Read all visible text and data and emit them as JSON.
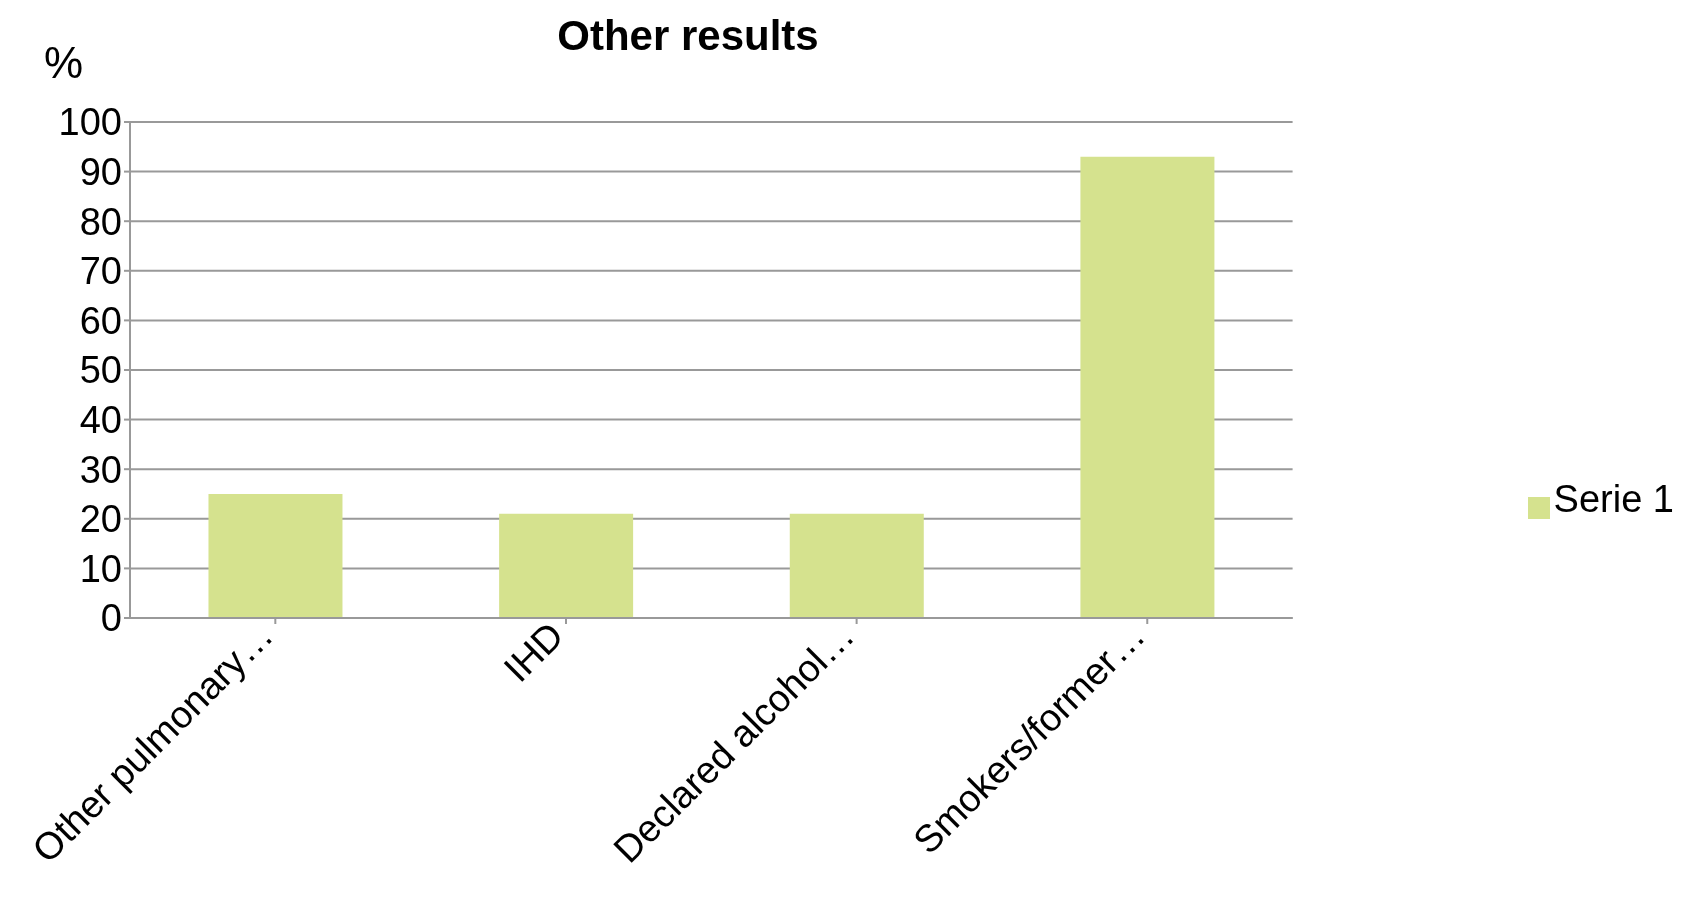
{
  "chart_data": {
    "type": "bar",
    "title": "Other results",
    "ylabel": "%",
    "categories": [
      "Other pulmonary…",
      "IHD",
      "Declared alcohol…",
      "Smokers/former…"
    ],
    "series": [
      {
        "name": "Serie 1",
        "color": "#d5e28e",
        "values": [
          25,
          21,
          21,
          93
        ]
      }
    ],
    "ylim": [
      0,
      100
    ],
    "yticks": [
      0,
      10,
      20,
      30,
      40,
      50,
      60,
      70,
      80,
      90,
      100
    ],
    "grid": "y",
    "legend": "right"
  }
}
